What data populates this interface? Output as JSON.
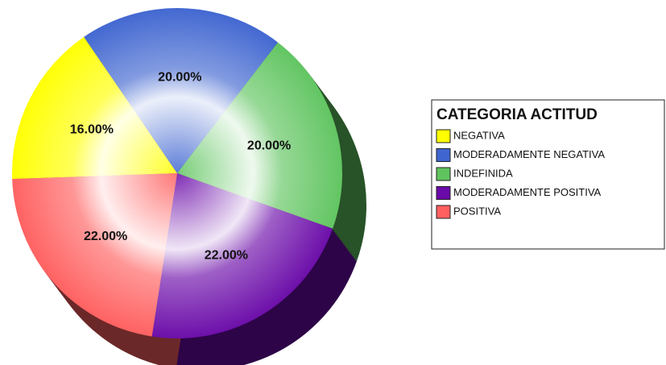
{
  "chart_data": {
    "type": "pie",
    "legend_title": "CATEGORIA ACTITUD",
    "categories": [
      "NEGATIVA",
      "MODERADAMENTE NEGATIVA",
      "INDEFINIDA",
      "MODERADAMENTE POSITIVA",
      "POSITIVA"
    ],
    "values": [
      16,
      20,
      20,
      22,
      22
    ],
    "value_labels": [
      "16.00%",
      "20.00%",
      "20.00%",
      "22.00%",
      "22.00%"
    ],
    "colors": [
      "#ffff00",
      "#3f65d0",
      "#5fc45f",
      "#6a0aa8",
      "#ff5f5f"
    ],
    "legend": "right"
  }
}
